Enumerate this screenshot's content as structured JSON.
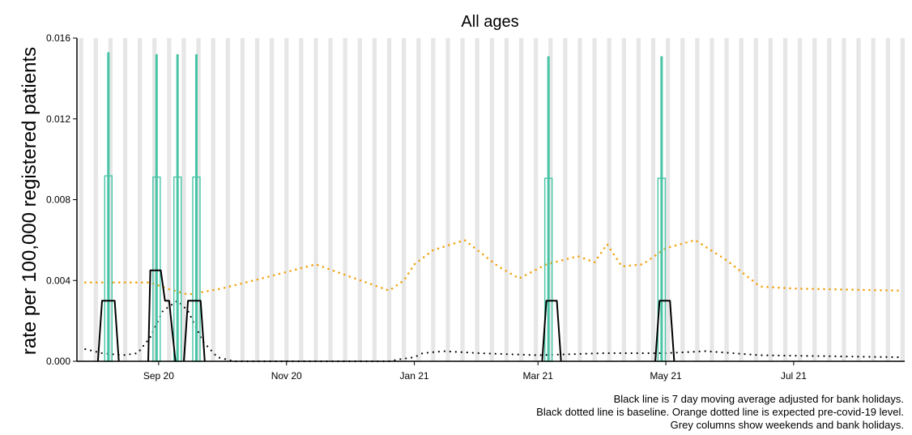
{
  "chart_data": {
    "type": "line",
    "title": "All ages",
    "xlabel": "",
    "ylabel": "rate per 100,000 registered patients",
    "x_range": [
      "2020-07-24",
      "2021-08-23"
    ],
    "ylim": [
      0,
      0.016
    ],
    "y_ticks": [
      "0.000",
      "0.004",
      "0.008",
      "0.012",
      "0.016"
    ],
    "x_ticks": [
      {
        "date": "2020-09-01",
        "label": "Sep 20"
      },
      {
        "date": "2020-11-01",
        "label": "Nov 20"
      },
      {
        "date": "2021-01-01",
        "label": "Jan 21"
      },
      {
        "date": "2021-03-01",
        "label": "Mar 21"
      },
      {
        "date": "2021-05-01",
        "label": "May 21"
      },
      {
        "date": "2021-07-01",
        "label": "Jul 21"
      }
    ],
    "grid": false,
    "legend": "none",
    "colors": {
      "daily": "#48c4a6",
      "moving_average": "#000000",
      "baseline": "#000000",
      "expected": "#f2a312",
      "weekend_columns": "#e6e6e6"
    },
    "series": [
      {
        "key": "daily",
        "style": "solid-teal",
        "points": [
          [
            "2020-08-08",
            0.0153
          ],
          [
            "2020-08-31",
            0.0152
          ],
          [
            "2020-09-10",
            0.0152
          ],
          [
            "2020-09-19",
            0.0152
          ],
          [
            "2021-03-06",
            0.0151
          ],
          [
            "2021-04-29",
            0.0151
          ]
        ]
      },
      {
        "key": "moving_average",
        "style": "solid-black",
        "points": [
          [
            "2020-08-03",
            0.0
          ],
          [
            "2020-08-05",
            0.003
          ],
          [
            "2020-08-11",
            0.003
          ],
          [
            "2020-08-13",
            0.0
          ],
          [
            "2020-08-27",
            0.0
          ],
          [
            "2020-08-28",
            0.0045
          ],
          [
            "2020-09-02",
            0.0045
          ],
          [
            "2020-09-04",
            0.003
          ],
          [
            "2020-09-06",
            0.003
          ],
          [
            "2020-09-09",
            0.0
          ],
          [
            "2020-09-13",
            0.0
          ],
          [
            "2020-09-15",
            0.003
          ],
          [
            "2020-09-19",
            0.003
          ],
          [
            "2020-09-21",
            0.003
          ],
          [
            "2020-09-23",
            0.0
          ],
          [
            "2021-03-03",
            0.0
          ],
          [
            "2021-03-05",
            0.003
          ],
          [
            "2021-03-10",
            0.003
          ],
          [
            "2021-03-12",
            0.0
          ],
          [
            "2021-04-26",
            0.0
          ],
          [
            "2021-04-28",
            0.003
          ],
          [
            "2021-05-03",
            0.003
          ],
          [
            "2021-05-05",
            0.0
          ]
        ]
      },
      {
        "key": "baseline",
        "style": "dotted-black",
        "points": [
          [
            "2020-07-28",
            0.0006
          ],
          [
            "2020-08-05",
            0.0004
          ],
          [
            "2020-08-15",
            0.0003
          ],
          [
            "2020-08-22",
            0.0004
          ],
          [
            "2020-08-28",
            0.0012
          ],
          [
            "2020-09-03",
            0.0025
          ],
          [
            "2020-09-10",
            0.003
          ],
          [
            "2020-09-15",
            0.0025
          ],
          [
            "2020-09-22",
            0.001
          ],
          [
            "2020-09-29",
            0.0002
          ],
          [
            "2020-10-07",
            0.0
          ],
          [
            "2020-12-20",
            0.0
          ],
          [
            "2020-12-25",
            0.0001
          ],
          [
            "2021-01-01",
            0.0002
          ],
          [
            "2021-01-05",
            0.0004
          ],
          [
            "2021-01-15",
            0.0005
          ],
          [
            "2021-02-01",
            0.0004
          ],
          [
            "2021-03-01",
            0.0003
          ],
          [
            "2021-04-01",
            0.0004
          ],
          [
            "2021-05-01",
            0.0004
          ],
          [
            "2021-05-20",
            0.0005
          ],
          [
            "2021-06-15",
            0.0003
          ],
          [
            "2021-08-20",
            0.0002
          ]
        ]
      },
      {
        "key": "expected",
        "style": "dotted-orange",
        "points": [
          [
            "2020-07-28",
            0.0039
          ],
          [
            "2020-08-15",
            0.0039
          ],
          [
            "2020-08-28",
            0.0039
          ],
          [
            "2020-09-05",
            0.0036
          ],
          [
            "2020-09-15",
            0.0033
          ],
          [
            "2020-10-01",
            0.0036
          ],
          [
            "2020-10-20",
            0.0041
          ],
          [
            "2020-11-15",
            0.0048
          ],
          [
            "2020-12-01",
            0.0042
          ],
          [
            "2020-12-20",
            0.0035
          ],
          [
            "2020-12-27",
            0.004
          ],
          [
            "2021-01-01",
            0.0048
          ],
          [
            "2021-01-10",
            0.0055
          ],
          [
            "2021-01-25",
            0.006
          ],
          [
            "2021-02-10",
            0.0047
          ],
          [
            "2021-02-20",
            0.0041
          ],
          [
            "2021-03-05",
            0.0048
          ],
          [
            "2021-03-20",
            0.0052
          ],
          [
            "2021-03-28",
            0.0049
          ],
          [
            "2021-04-03",
            0.0058
          ],
          [
            "2021-04-10",
            0.0047
          ],
          [
            "2021-04-20",
            0.0048
          ],
          [
            "2021-05-01",
            0.0056
          ],
          [
            "2021-05-15",
            0.006
          ],
          [
            "2021-05-30",
            0.005
          ],
          [
            "2021-06-15",
            0.0037
          ],
          [
            "2021-07-01",
            0.0036
          ],
          [
            "2021-08-20",
            0.0035
          ]
        ]
      }
    ]
  },
  "caption": {
    "line1": "Black line is 7 day moving average adjusted for bank holidays.",
    "line2": "Black dotted line is baseline. Orange dotted line is expected pre-covid-19 level.",
    "line3": "Grey columns show weekends and bank holidays."
  }
}
